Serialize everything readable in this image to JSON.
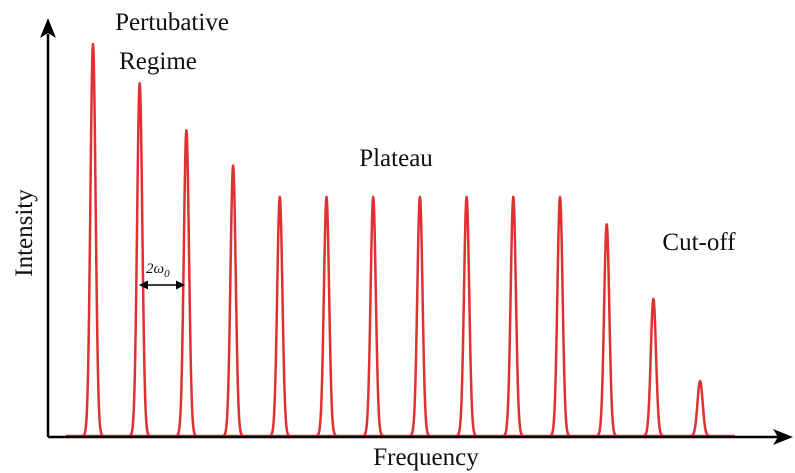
{
  "chart_data": {
    "type": "line",
    "xlabel": "Frequency",
    "ylabel": "Intensity",
    "annotations": {
      "perturbative": [
        "Pertubative",
        "Regime"
      ],
      "plateau": "Plateau",
      "cutoff": "Cut-off",
      "spacing": "2ω",
      "spacing_sub": "0"
    },
    "peak_color": "#e03030",
    "peaks": [
      {
        "x": 1,
        "y": 1.0
      },
      {
        "x": 2,
        "y": 0.9
      },
      {
        "x": 3,
        "y": 0.78
      },
      {
        "x": 4,
        "y": 0.69
      },
      {
        "x": 5,
        "y": 0.61
      },
      {
        "x": 6,
        "y": 0.61
      },
      {
        "x": 7,
        "y": 0.61
      },
      {
        "x": 8,
        "y": 0.61
      },
      {
        "x": 9,
        "y": 0.61
      },
      {
        "x": 10,
        "y": 0.61
      },
      {
        "x": 11,
        "y": 0.61
      },
      {
        "x": 12,
        "y": 0.54
      },
      {
        "x": 13,
        "y": 0.35
      },
      {
        "x": 14,
        "y": 0.14
      }
    ],
    "ylim": [
      0,
      1
    ],
    "grid": false
  }
}
